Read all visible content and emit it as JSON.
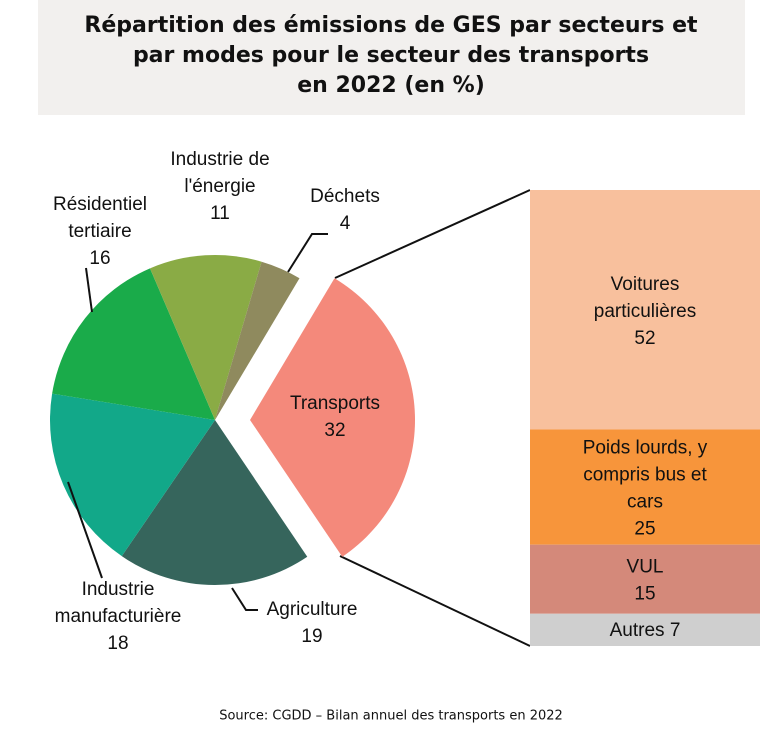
{
  "title": "Répartition des émissions de GES par secteurs et\npar modes pour le secteur des transports\nen 2022 (en %)",
  "source": "Source: CGDD – Bilan annuel des transports en 2022",
  "chart_data": [
    {
      "type": "pie",
      "categories": [
        "Transports",
        "Agriculture",
        "Industrie\nmanufacturière",
        "Résidentiel\ntertiaire",
        "Industrie de\nl'énergie",
        "Déchets"
      ],
      "values": [
        32,
        19,
        18,
        16,
        11,
        4
      ],
      "colors": [
        "#f4897b",
        "#36655c",
        "#12a889",
        "#1aab4a",
        "#8aab45",
        "#8f8a5e"
      ]
    },
    {
      "type": "stacked-bar",
      "categories": [
        "Voitures\nparticulières",
        "Poids lourds, y\ncompris bus et\ncars",
        "VUL",
        "Autres"
      ],
      "values": [
        52,
        25,
        15,
        7
      ],
      "colors": [
        "#f8c09d",
        "#f7953b",
        "#d4897a",
        "#cfcfcf"
      ]
    }
  ]
}
